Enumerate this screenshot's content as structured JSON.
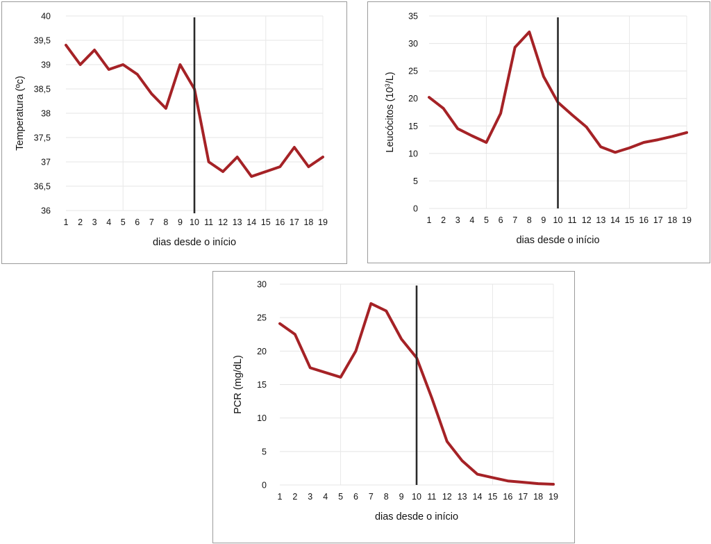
{
  "chart_data": [
    {
      "type": "line",
      "xlabel": "dias desde o início",
      "ylabel": "Temperatura (ºc)",
      "categories": [
        "1",
        "2",
        "3",
        "4",
        "5",
        "6",
        "7",
        "8",
        "9",
        "10",
        "11",
        "12",
        "13",
        "14",
        "15",
        "16",
        "17",
        "18",
        "19"
      ],
      "x": [
        1,
        2,
        3,
        4,
        5,
        6,
        7,
        8,
        9,
        10,
        11,
        12,
        13,
        14,
        15,
        16,
        17,
        18,
        19
      ],
      "values": [
        39.4,
        39.0,
        39.3,
        38.9,
        39.0,
        38.8,
        38.4,
        38.1,
        39.0,
        38.5,
        37.0,
        36.8,
        37.1,
        36.7,
        36.8,
        36.9,
        37.3,
        36.9,
        37.1
      ],
      "ylim": [
        36,
        40
      ],
      "yticks": [
        36,
        36.5,
        37,
        37.5,
        38,
        38.5,
        39,
        39.5,
        40
      ],
      "ytick_labels": [
        "36",
        "36,5",
        "37",
        "37,5",
        "38",
        "38,5",
        "39",
        "39,5",
        "40"
      ],
      "vline_x": 10,
      "line_color": "#a52226",
      "vline_color": "#2a2a2a",
      "grid": true
    },
    {
      "type": "line",
      "xlabel": "dias desde o início",
      "ylabel": "Leucócitos (10",
      "ylabel_sup": "3",
      "ylabel_tail": "/L)",
      "categories": [
        "1",
        "2",
        "3",
        "4",
        "5",
        "6",
        "7",
        "8",
        "9",
        "10",
        "11",
        "12",
        "13",
        "14",
        "15",
        "16",
        "17",
        "18",
        "19"
      ],
      "x": [
        1,
        2,
        3,
        4,
        5,
        6,
        7,
        8,
        9,
        10,
        11,
        12,
        13,
        14,
        15,
        16,
        17,
        18,
        19
      ],
      "values": [
        20.2,
        18.2,
        14.5,
        13.2,
        12.0,
        17.3,
        29.3,
        32.1,
        24.0,
        19.3,
        17.0,
        14.8,
        11.2,
        10.2,
        11.0,
        12.0,
        12.5,
        13.1,
        13.8
      ],
      "ylim": [
        0,
        35
      ],
      "yticks": [
        0,
        5,
        10,
        15,
        20,
        25,
        30,
        35
      ],
      "ytick_labels": [
        "0",
        "5",
        "10",
        "15",
        "20",
        "25",
        "30",
        "35"
      ],
      "vline_x": 10,
      "line_color": "#a52226",
      "vline_color": "#2a2a2a",
      "grid": true
    },
    {
      "type": "line",
      "xlabel": "dias desde o início",
      "ylabel": "PCR (mg/dL)",
      "categories": [
        "1",
        "2",
        "3",
        "4",
        "5",
        "6",
        "7",
        "8",
        "9",
        "10",
        "11",
        "12",
        "13",
        "14",
        "15",
        "16",
        "17",
        "18",
        "19"
      ],
      "x": [
        1,
        2,
        3,
        4,
        5,
        6,
        7,
        8,
        9,
        10,
        11,
        12,
        13,
        14,
        15,
        16,
        17,
        18,
        19
      ],
      "values": [
        24.1,
        22.5,
        17.5,
        16.8,
        16.1,
        20.0,
        27.1,
        26.0,
        21.8,
        19.0,
        13.0,
        6.5,
        3.6,
        1.6,
        1.1,
        0.6,
        0.4,
        0.2,
        0.1
      ],
      "ylim": [
        0,
        30
      ],
      "yticks": [
        0,
        5,
        10,
        15,
        20,
        25,
        30
      ],
      "ytick_labels": [
        "0",
        "5",
        "10",
        "15",
        "20",
        "25",
        "30"
      ],
      "vline_x": 10,
      "line_color": "#a52226",
      "vline_color": "#2a2a2a",
      "grid": true
    }
  ]
}
